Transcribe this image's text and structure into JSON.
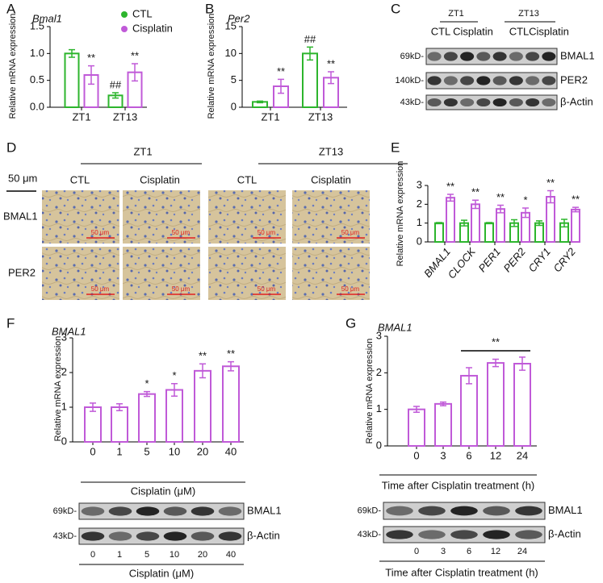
{
  "chart_data": [
    {
      "type": "bar",
      "title": "Bmal1",
      "ylabel": "Relative mRNA expression",
      "categories": [
        "ZT1",
        "ZT13"
      ],
      "series": [
        {
          "name": "CTL",
          "color": "#2db52d",
          "values": [
            1.0,
            0.22
          ],
          "errors": [
            0.07,
            0.05
          ],
          "significance": [
            null,
            "##"
          ]
        },
        {
          "name": "Cisplatin",
          "color": "#c05ad8",
          "values": [
            0.6,
            0.65
          ],
          "errors": [
            0.17,
            0.16
          ],
          "significance": [
            "**",
            "**"
          ]
        }
      ],
      "ylim": [
        0,
        1.5
      ],
      "yticks": [
        {
          "value": 0,
          "label": "0.0"
        },
        0.5,
        {
          "value": 1,
          "label": "1.0"
        },
        1.5
      ]
    },
    {
      "type": "bar",
      "title": "Per2",
      "ylabel": "Relative mRNA expression",
      "categories": [
        "ZT1",
        "ZT13"
      ],
      "series": [
        {
          "color": "#2db52d",
          "values": [
            1.0,
            10.0
          ],
          "errors": [
            0.15,
            1.2
          ],
          "significance": [
            null,
            "##"
          ]
        },
        {
          "color": "#c05ad8",
          "values": [
            3.9,
            5.5
          ],
          "errors": [
            1.3,
            1.1
          ],
          "significance": [
            "**",
            "**"
          ]
        }
      ],
      "ylim": [
        0,
        15
      ],
      "yticks": [
        0,
        5,
        10,
        15
      ]
    },
    {
      "type": "bar",
      "ylabel": "Relative mRNA expression",
      "categories": [
        "BMAL1",
        "CLOCK",
        "PER1",
        "PER2",
        "CRY1",
        "CRY2"
      ],
      "series": [
        {
          "color": "#2db52d",
          "values": [
            1,
            1,
            1,
            1,
            1,
            1
          ],
          "errors": [
            0.03,
            0.15,
            0.03,
            0.18,
            0.12,
            0.2
          ]
        },
        {
          "color": "#c05ad8",
          "values": [
            2.35,
            2.0,
            1.75,
            1.55,
            2.4,
            1.72
          ],
          "errors": [
            0.18,
            0.22,
            0.2,
            0.25,
            0.32,
            0.12
          ],
          "significance": [
            "**",
            "**",
            "**",
            "*",
            "**",
            "**"
          ]
        }
      ],
      "ylim": [
        0,
        3
      ],
      "yticks": [
        0,
        1,
        2,
        3
      ]
    },
    {
      "type": "bar",
      "title": "BMAL1",
      "ylabel": "Relative mRNA expression",
      "xlabel": "Cisplatin (μM)",
      "categories": [
        "0",
        "1",
        "5",
        "10",
        "20",
        "40"
      ],
      "color": "#c05ad8",
      "values": [
        1.0,
        1.0,
        1.38,
        1.5,
        2.05,
        2.18
      ],
      "errors": [
        0.12,
        0.1,
        0.07,
        0.18,
        0.2,
        0.13
      ],
      "significance": [
        null,
        null,
        "*",
        "*",
        "**",
        "**"
      ],
      "ylim": [
        0,
        3
      ],
      "yticks": [
        0,
        1,
        2,
        3
      ]
    },
    {
      "type": "bar",
      "title": "BMAL1",
      "ylabel": "Relative mRNA expression",
      "xlabel": "Time after Cisplatin treatment (h)",
      "categories": [
        "0",
        "3",
        "6",
        "12",
        "24"
      ],
      "color": "#c05ad8",
      "values": [
        1.0,
        1.15,
        1.92,
        2.27,
        2.25
      ],
      "errors": [
        0.08,
        0.05,
        0.22,
        0.1,
        0.18
      ],
      "bracket": {
        "text": "**",
        "from": "6",
        "to": "24"
      },
      "ylim": [
        0,
        3
      ],
      "yticks": [
        0,
        1,
        2,
        3
      ]
    }
  ],
  "figure": {
    "panel_labels": [
      "A",
      "B",
      "C",
      "D",
      "E",
      "F",
      "G"
    ],
    "blot_c": {
      "groups": [
        "ZT1",
        "ZT13"
      ],
      "lanes": [
        "CTL",
        "Cisplatin",
        "CTL",
        "Cisplatin"
      ],
      "sizes": [
        "69kD-",
        "140kD-",
        "43kD-"
      ],
      "proteins": [
        "BMAL1",
        "PER2",
        "β-Actin"
      ]
    },
    "histology_d": {
      "groups": [
        "ZT1",
        "ZT13"
      ],
      "columns": [
        "CTL",
        "Cisplatin",
        "CTL",
        "Cisplatin"
      ],
      "rows": [
        "BMAL1",
        "PER2"
      ],
      "scale": "50 μm",
      "image_scale": "50 μm"
    },
    "blot_f": {
      "sizes": [
        "69kD-",
        "43kD-"
      ],
      "proteins": [
        "BMAL1",
        "β-Actin"
      ],
      "lanes": [
        "0",
        "1",
        "5",
        "10",
        "20",
        "40"
      ],
      "xlabel": "Cisplatin (μM)"
    },
    "blot_g": {
      "sizes": [
        "69kD-",
        "43kD-"
      ],
      "proteins": [
        "BMAL1",
        "β-Actin"
      ],
      "lanes": [
        "0",
        "3",
        "6",
        "12",
        "24"
      ],
      "xlabel": "Time after Cisplatin treatment (h)"
    }
  }
}
